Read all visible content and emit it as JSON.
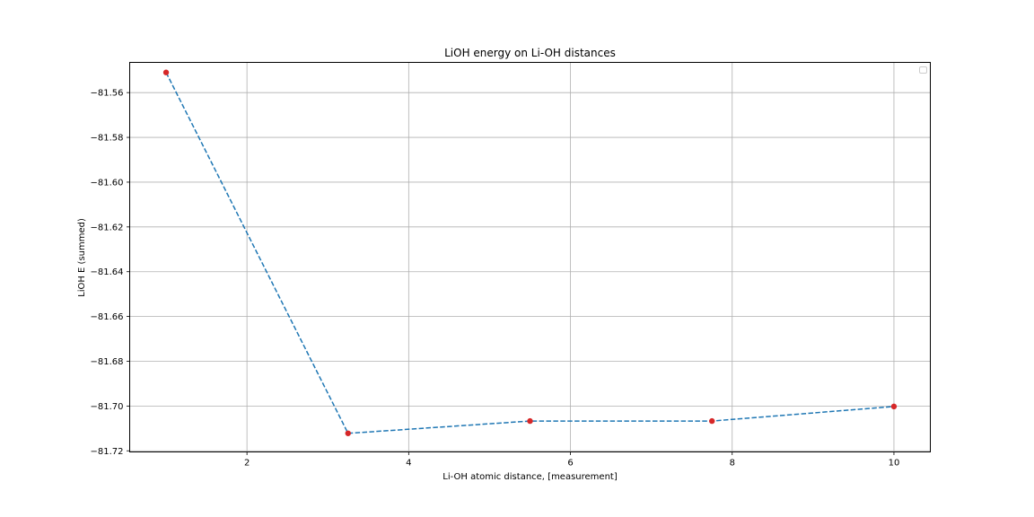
{
  "chart_data": {
    "type": "line",
    "title": "LiOH energy on Li-OH distances",
    "xlabel": "Li-OH atomic distance, [measurement]",
    "ylabel": "LiOH E (summed)",
    "xlim": [
      0.55,
      10.45
    ],
    "ylim": [
      -81.7205,
      -81.5465
    ],
    "xticks": [
      2,
      4,
      6,
      8,
      10
    ],
    "xtick_labels": [
      "2",
      "4",
      "6",
      "8",
      "10"
    ],
    "yticks": [
      -81.56,
      -81.58,
      -81.6,
      -81.62,
      -81.64,
      -81.66,
      -81.68,
      -81.7,
      -81.72
    ],
    "ytick_labels": [
      "−81.56",
      "−81.58",
      "−81.60",
      "−81.62",
      "−81.64",
      "−81.66",
      "−81.68",
      "−81.70",
      "−81.72"
    ],
    "grid": true,
    "legend": {
      "placement": "top-right",
      "entries": []
    },
    "series": [
      {
        "line_style": "dashed",
        "line_color": "#1f77b4",
        "marker_color": "#d62728",
        "x": [
          1.0,
          3.25,
          5.5,
          7.75,
          10.0
        ],
        "y": [
          -81.551,
          -81.7122,
          -81.7067,
          -81.7067,
          -81.7002
        ]
      }
    ]
  }
}
